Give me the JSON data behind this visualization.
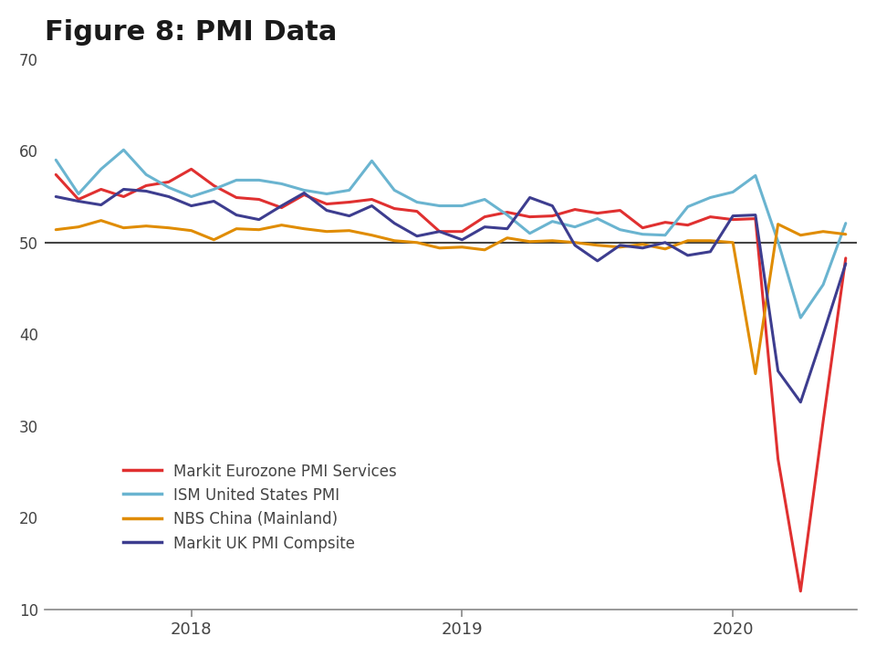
{
  "title": "Figure 8: PMI Data",
  "title_fontsize": 22,
  "title_fontweight": "bold",
  "title_color": "#1a1a1a",
  "ylim": [
    10,
    70
  ],
  "yticks": [
    10,
    20,
    30,
    40,
    50,
    60,
    70
  ],
  "background_color": "#ffffff",
  "reference_line": 50,
  "reference_line_color": "#444444",
  "series": [
    {
      "label": "Markit Eurozone PMI Services",
      "color": "#e03030",
      "linewidth": 2.2,
      "values": [
        57.4,
        54.7,
        55.8,
        55.0,
        56.2,
        56.6,
        58.0,
        56.2,
        54.9,
        54.7,
        53.8,
        55.2,
        54.2,
        54.4,
        54.7,
        53.7,
        53.4,
        51.2,
        51.2,
        52.8,
        53.3,
        52.8,
        52.9,
        53.6,
        53.2,
        53.5,
        51.6,
        52.2,
        51.9,
        52.8,
        52.5,
        52.6,
        26.4,
        12.0,
        30.5,
        48.3
      ]
    },
    {
      "label": "ISM United States PMI",
      "color": "#6ab4d0",
      "linewidth": 2.2,
      "values": [
        59.0,
        55.3,
        58.0,
        60.1,
        57.4,
        56.0,
        55.0,
        55.8,
        56.8,
        56.8,
        56.4,
        55.7,
        55.3,
        55.7,
        58.9,
        55.7,
        54.4,
        54.0,
        54.0,
        54.7,
        53.0,
        51.0,
        52.3,
        51.7,
        52.6,
        51.4,
        50.9,
        50.8,
        53.9,
        54.9,
        55.5,
        57.3,
        50.1,
        41.8,
        45.4,
        52.1
      ]
    },
    {
      "label": "NBS China (Mainland)",
      "color": "#e08c00",
      "linewidth": 2.2,
      "values": [
        51.4,
        51.7,
        52.4,
        51.6,
        51.8,
        51.6,
        51.3,
        50.3,
        51.5,
        51.4,
        51.9,
        51.5,
        51.2,
        51.3,
        50.8,
        50.2,
        50.0,
        49.4,
        49.5,
        49.2,
        50.5,
        50.1,
        50.2,
        50.0,
        49.7,
        49.5,
        49.8,
        49.3,
        50.2,
        50.2,
        50.0,
        35.7,
        52.0,
        50.8,
        51.2,
        50.9
      ]
    },
    {
      "label": "Markit UK PMI Compsite",
      "color": "#3d3d8f",
      "linewidth": 2.2,
      "values": [
        55.0,
        54.5,
        54.1,
        55.8,
        55.6,
        55.0,
        54.0,
        54.5,
        53.0,
        52.5,
        54.0,
        55.4,
        53.5,
        52.9,
        54.0,
        52.1,
        50.7,
        51.2,
        50.3,
        51.7,
        51.5,
        54.9,
        54.0,
        49.7,
        48.0,
        49.7,
        49.4,
        50.0,
        48.6,
        49.0,
        52.9,
        53.0,
        36.0,
        32.6,
        40.0,
        47.7
      ]
    }
  ],
  "xtick_years": [
    "2018",
    "2019",
    "2020"
  ],
  "xtick_positions": [
    6,
    18,
    30
  ],
  "legend_fontsize": 12,
  "legend_text_color": "#444444",
  "tick_label_color": "#444444",
  "tick_label_fontsize": 12,
  "spine_color": "#888888"
}
